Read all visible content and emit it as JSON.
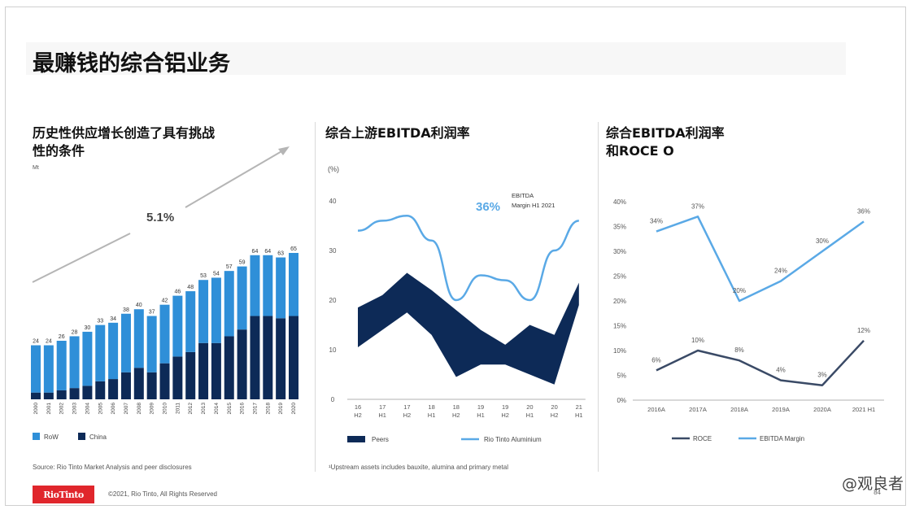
{
  "page": {
    "title": "最赚钱的综合铝业务",
    "source": "Source: Rio Tinto Market Analysis and peer disclosures",
    "copyright": "©2021, Rio Tinto, All Rights Reserved",
    "logo_text": "RioTinto",
    "watermark": "@观良者",
    "page_number": "84",
    "footnote": "¹Upstream assets includes bauxite, alumina and primary metal"
  },
  "colors": {
    "row": "#2f8fd8",
    "china": "#0d2a57",
    "line": "#5aa9e6",
    "band": "#0d2a57",
    "roce": "#3a4a66"
  },
  "chart_data": [
    {
      "type": "bar",
      "title": "历史性供应增长创造了具有挑战性的条件",
      "title_line1": "历史性供应增长创造了具有挑战",
      "title_line2": "性的条件",
      "unit": "Mt",
      "cagr": "5.1%",
      "categories": [
        "2000",
        "2001",
        "2002",
        "2003",
        "2004",
        "2005",
        "2006",
        "2007",
        "2008",
        "2009",
        "2010",
        "2011",
        "2012",
        "2013",
        "2014",
        "2015",
        "2016",
        "2017",
        "2018",
        "2019",
        "2020"
      ],
      "totals": [
        24,
        24,
        26,
        28,
        30,
        33,
        34,
        38,
        40,
        37,
        42,
        46,
        48,
        53,
        54,
        57,
        59,
        64,
        64,
        63,
        65
      ],
      "series": [
        {
          "name": "RoW",
          "values": [
            21,
            21,
            22,
            23,
            24,
            25,
            25,
            26,
            26,
            25,
            26,
            27,
            27,
            28,
            29,
            29,
            28,
            27,
            27,
            27,
            28
          ]
        },
        {
          "name": "China",
          "values": [
            3,
            3,
            4,
            5,
            6,
            8,
            9,
            12,
            14,
            12,
            16,
            19,
            21,
            25,
            25,
            28,
            31,
            37,
            37,
            36,
            37
          ]
        }
      ],
      "legend": [
        "RoW",
        "China"
      ],
      "ylim": [
        0,
        70
      ]
    },
    {
      "type": "area",
      "title": "综合上游EBITDA利润率",
      "ylabel": "(%)",
      "categories": [
        "16 H2",
        "17 H1",
        "17 H2",
        "18 H1",
        "18 H2",
        "19 H1",
        "19 H2",
        "20 H1",
        "20 H2",
        "21 H1"
      ],
      "category_top": [
        "16",
        "17",
        "17",
        "18",
        "18",
        "19",
        "19",
        "20",
        "20",
        "21"
      ],
      "category_bottom": [
        "H2",
        "H1",
        "H2",
        "H1",
        "H2",
        "H1",
        "H2",
        "H1",
        "H2",
        "H1"
      ],
      "yticks": [
        0,
        10,
        20,
        30,
        40
      ],
      "ylim": [
        0,
        40
      ],
      "series": [
        {
          "name": "Rio Tinto Aluminium",
          "values": [
            34,
            36,
            37,
            32,
            20,
            25,
            24,
            20,
            30,
            36
          ]
        },
        {
          "name": "Peers",
          "upper": [
            18.5,
            21,
            25.5,
            22,
            18,
            14,
            11,
            15,
            13,
            23.5
          ],
          "lower": [
            10.5,
            14,
            17.5,
            13,
            4.5,
            7,
            7,
            5,
            3,
            19
          ]
        }
      ],
      "legend": [
        "Peers",
        "Rio Tinto Aluminium"
      ],
      "annotation_value": "36%",
      "annotation_line1": "EBITDA",
      "annotation_line2": "Margin H1 2021"
    },
    {
      "type": "line",
      "title": "综合EBITDA利润率和ROCE O",
      "title_line1": "综合EBITDA利润率",
      "title_line2": "和ROCE O",
      "categories": [
        "2016A",
        "2017A",
        "2018A",
        "2019A",
        "2020A",
        "2021 H1"
      ],
      "ytick_labels": [
        "0%",
        "5%",
        "10%",
        "15%",
        "20%",
        "25%",
        "30%",
        "35%",
        "40%"
      ],
      "yticks": [
        0,
        5,
        10,
        15,
        20,
        25,
        30,
        35,
        40
      ],
      "ylim": [
        0,
        40
      ],
      "series": [
        {
          "name": "ROCE",
          "values": [
            6,
            10,
            8,
            4,
            3,
            12
          ],
          "labels": [
            "6%",
            "10%",
            "8%",
            "4%",
            "3%",
            "12%"
          ]
        },
        {
          "name": "EBITDA Margin",
          "values": [
            34,
            37,
            20,
            24,
            30,
            36
          ],
          "labels": [
            "34%",
            "37%",
            "20%",
            "24%",
            "30%",
            "36%"
          ]
        }
      ],
      "legend": [
        "ROCE",
        "EBITDA Margin"
      ]
    }
  ]
}
